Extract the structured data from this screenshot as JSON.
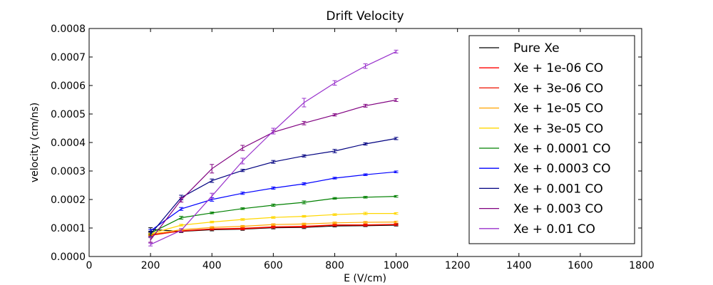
{
  "chart_data": {
    "type": "line",
    "title": "Drift Velocity",
    "xlabel": "E (V/cm)",
    "ylabel": "velocity (cm/ns)",
    "xlim": [
      0,
      1800
    ],
    "ylim": [
      0,
      0.0008
    ],
    "xticks": [
      0,
      200,
      400,
      600,
      800,
      1000,
      1200,
      1400,
      1600,
      1800
    ],
    "xtick_labels": [
      "0",
      "200",
      "400",
      "600",
      "800",
      "1000",
      "1200",
      "1400",
      "1600",
      "1800"
    ],
    "yticks": [
      0,
      0.0001,
      0.0002,
      0.0003,
      0.0004,
      0.0005,
      0.0006,
      0.0007,
      0.0008
    ],
    "ytick_labels": [
      "0.0000",
      "0.0001",
      "0.0002",
      "0.0003",
      "0.0004",
      "0.0005",
      "0.0006",
      "0.0007",
      "0.0008"
    ],
    "grid": false,
    "legend_position": "top-right",
    "error_bars": true,
    "x": [
      200,
      300,
      400,
      500,
      600,
      700,
      800,
      900,
      1000
    ],
    "series": [
      {
        "name": "Pure Xe",
        "color": "#000000",
        "values": [
          9.5e-05,
          8.8e-05,
          9.4e-05,
          9.6e-05,
          0.000101,
          0.000102,
          0.000107,
          0.000108,
          0.00011
        ],
        "errors": [
          6e-06,
          4e-06,
          4e-06,
          4e-06,
          4e-06,
          4e-06,
          3e-06,
          3e-06,
          3e-06
        ]
      },
      {
        "name": "Xe + 1e-06 CO",
        "color": "#ff0000",
        "values": [
          7.6e-05,
          8.9e-05,
          9.6e-05,
          9.7e-05,
          0.000103,
          0.000104,
          0.00011,
          0.00011,
          0.000112
        ],
        "errors": [
          3e-06,
          3e-06,
          3e-06,
          3e-06,
          3e-06,
          3e-06,
          3e-06,
          3e-06,
          3e-06
        ]
      },
      {
        "name": "Xe + 3e-06 CO",
        "color": "#ee1100",
        "values": [
          7.4e-05,
          9e-05,
          9.7e-05,
          9.9e-05,
          0.000104,
          0.000106,
          0.000111,
          0.000111,
          0.000113
        ],
        "errors": [
          3e-06,
          3e-06,
          3e-06,
          3e-06,
          3e-06,
          3e-06,
          3e-06,
          3e-06,
          3e-06
        ]
      },
      {
        "name": "Xe + 1e-05 CO",
        "color": "#ffa500",
        "values": [
          7.8e-05,
          9.4e-05,
          0.000102,
          0.000106,
          0.000112,
          0.000114,
          0.000118,
          0.00012,
          0.000121
        ],
        "errors": [
          3e-06,
          3e-06,
          3e-06,
          3e-06,
          3e-06,
          3e-06,
          3e-06,
          3e-06,
          3e-06
        ]
      },
      {
        "name": "Xe + 3e-05 CO",
        "color": "#ffd700",
        "values": [
          8e-05,
          0.00011,
          0.000121,
          0.00013,
          0.000137,
          0.000141,
          0.000147,
          0.000151,
          0.000151
        ],
        "errors": [
          3e-06,
          3e-06,
          3e-06,
          3e-06,
          3e-06,
          3e-06,
          3e-06,
          4e-06,
          3e-06
        ]
      },
      {
        "name": "Xe + 0.0001 CO",
        "color": "#008000",
        "values": [
          8.2e-05,
          0.000136,
          0.000153,
          0.000168,
          0.00018,
          0.00019,
          0.000204,
          0.000208,
          0.000211
        ],
        "errors": [
          4e-06,
          5e-06,
          3e-06,
          3e-06,
          4e-06,
          5e-06,
          3e-06,
          3e-06,
          3e-06
        ]
      },
      {
        "name": "Xe + 0.0003 CO",
        "color": "#0000ff",
        "values": [
          9e-05,
          0.000167,
          0.0002,
          0.000222,
          0.00024,
          0.000255,
          0.000275,
          0.000287,
          0.000297
        ],
        "errors": [
          5e-06,
          5e-06,
          6e-06,
          4e-06,
          4e-06,
          4e-06,
          3e-06,
          3e-06,
          3e-06
        ]
      },
      {
        "name": "Xe + 0.001 CO",
        "color": "#000080",
        "values": [
          7.8e-05,
          0.000207,
          0.000266,
          0.000302,
          0.000332,
          0.000353,
          0.00037,
          0.000395,
          0.000414
        ],
        "errors": [
          8e-06,
          8e-06,
          6e-06,
          4e-06,
          5e-06,
          4e-06,
          6e-06,
          4e-06,
          4e-06
        ]
      },
      {
        "name": "Xe + 0.003 CO",
        "color": "#800080",
        "values": [
          5.8e-05,
          0.000199,
          0.000308,
          0.000381,
          0.000436,
          0.000468,
          0.000497,
          0.000529,
          0.000549
        ],
        "errors": [
          8e-06,
          8e-06,
          1.5e-05,
          9e-06,
          6e-06,
          6e-06,
          4e-06,
          5e-06,
          5e-06
        ]
      },
      {
        "name": "Xe + 0.01 CO",
        "color": "#9932cc",
        "values": [
          4.2e-05,
          9.2e-05,
          0.000212,
          0.000335,
          0.00044,
          0.00054,
          0.000609,
          0.000668,
          0.000719
        ],
        "errors": [
          5e-06,
          6e-06,
          1e-05,
          1e-05,
          1e-05,
          1.5e-05,
          8e-06,
          8e-06,
          5e-06
        ]
      }
    ]
  }
}
